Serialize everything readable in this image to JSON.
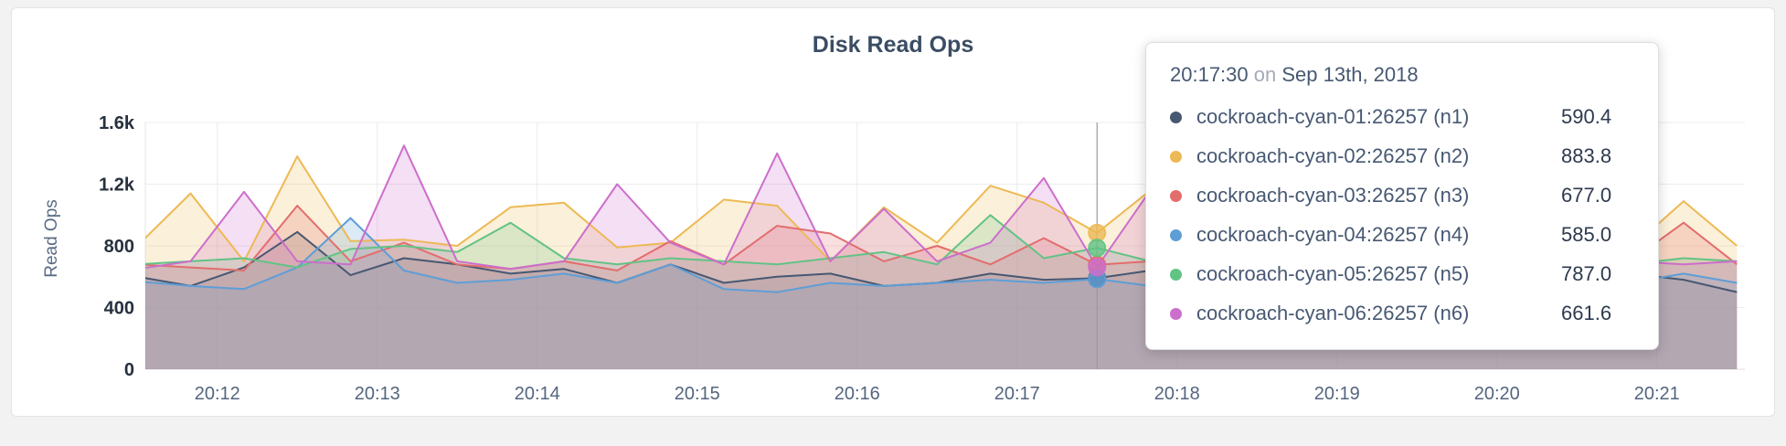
{
  "window": {
    "background": "#f2f2f2",
    "card_background": "#ffffff"
  },
  "chart_data": {
    "type": "area",
    "title": "Disk Read Ops",
    "ylabel": "Read Ops",
    "xlabel": "",
    "grid": true,
    "legend_position": "tooltip",
    "ylim": [
      0,
      1600
    ],
    "xlim": [
      11.55,
      21.55
    ],
    "yticks": [
      {
        "v": 0,
        "label": "0"
      },
      {
        "v": 400,
        "label": "400"
      },
      {
        "v": 800,
        "label": "800"
      },
      {
        "v": 1200,
        "label": "1.2k"
      },
      {
        "v": 1600,
        "label": "1.6k"
      }
    ],
    "xticks": [
      {
        "v": 12,
        "label": "20:12"
      },
      {
        "v": 13,
        "label": "20:13"
      },
      {
        "v": 14,
        "label": "20:14"
      },
      {
        "v": 15,
        "label": "20:15"
      },
      {
        "v": 16,
        "label": "20:16"
      },
      {
        "v": 17,
        "label": "20:17"
      },
      {
        "v": 18,
        "label": "20:18"
      },
      {
        "v": 19,
        "label": "20:19"
      },
      {
        "v": 20,
        "label": "20:20"
      },
      {
        "v": 21,
        "label": "20:21"
      }
    ],
    "x": [
      11.5,
      11.833,
      12.167,
      12.5,
      12.833,
      13.167,
      13.5,
      13.833,
      14.167,
      14.5,
      14.833,
      15.167,
      15.5,
      15.833,
      16.167,
      16.5,
      16.833,
      17.167,
      17.5,
      17.833,
      18.167,
      18.5,
      18.833,
      19.167,
      19.5,
      19.833,
      20.167,
      20.5,
      20.833,
      21.167,
      21.5
    ],
    "crosshair_x": 17.5,
    "series": [
      {
        "id": "n1",
        "name": "cockroach-cyan-01:26257 (n1)",
        "color": "#475872",
        "values": [
          600,
          540,
          660,
          890,
          610,
          720,
          680,
          620,
          650,
          560,
          680,
          560,
          600,
          620,
          540,
          560,
          620,
          580,
          590.4,
          640,
          600,
          560,
          620,
          580,
          600,
          640,
          560,
          600,
          620,
          580,
          500
        ]
      },
      {
        "id": "n2",
        "name": "cockroach-cyan-02:26257 (n2)",
        "color": "#edb954",
        "values": [
          800,
          1140,
          700,
          1380,
          830,
          840,
          800,
          1050,
          1080,
          790,
          820,
          1100,
          1060,
          700,
          1050,
          820,
          1190,
          1080,
          883.8,
          1160,
          1100,
          750,
          900,
          820,
          1000,
          880,
          760,
          980,
          780,
          1090,
          800
        ]
      },
      {
        "id": "n3",
        "name": "cockroach-cyan-03:26257 (n3)",
        "color": "#e36d6d",
        "values": [
          680,
          660,
          640,
          1060,
          700,
          820,
          680,
          650,
          700,
          640,
          830,
          680,
          930,
          880,
          700,
          800,
          680,
          850,
          677,
          700,
          660,
          720,
          680,
          650,
          700,
          680,
          720,
          650,
          700,
          950,
          680
        ]
      },
      {
        "id": "n4",
        "name": "cockroach-cyan-04:26257 (n4)",
        "color": "#5e9ed6",
        "values": [
          570,
          540,
          520,
          660,
          980,
          640,
          560,
          580,
          620,
          560,
          680,
          520,
          500,
          560,
          540,
          560,
          580,
          560,
          585,
          540,
          560,
          580,
          540,
          560,
          520,
          560,
          580,
          540,
          560,
          620,
          560
        ]
      },
      {
        "id": "n5",
        "name": "cockroach-cyan-05:26257 (n5)",
        "color": "#62c385",
        "values": [
          680,
          700,
          720,
          660,
          780,
          800,
          760,
          950,
          720,
          680,
          720,
          700,
          680,
          720,
          760,
          680,
          1000,
          720,
          787,
          700,
          720,
          680,
          700,
          720,
          700,
          680,
          720,
          700,
          680,
          720,
          700
        ]
      },
      {
        "id": "n6",
        "name": "cockroach-cyan-06:26257 (n6)",
        "color": "#cc6ecb",
        "values": [
          650,
          700,
          1150,
          700,
          680,
          1450,
          700,
          650,
          700,
          1200,
          820,
          680,
          1400,
          700,
          1040,
          700,
          820,
          1240,
          661.6,
          1160,
          700,
          680,
          720,
          700,
          680,
          700,
          720,
          680,
          700,
          680,
          700
        ]
      }
    ]
  },
  "tooltip": {
    "time": "20:17:30",
    "on_word": "on",
    "date": "Sep 13th, 2018",
    "rows": [
      {
        "name": "cockroach-cyan-01:26257 (n1)",
        "value": "590.4",
        "color": "#475872"
      },
      {
        "name": "cockroach-cyan-02:26257 (n2)",
        "value": "883.8",
        "color": "#edb954"
      },
      {
        "name": "cockroach-cyan-03:26257 (n3)",
        "value": "677.0",
        "color": "#e36d6d"
      },
      {
        "name": "cockroach-cyan-04:26257 (n4)",
        "value": "585.0",
        "color": "#5e9ed6"
      },
      {
        "name": "cockroach-cyan-05:26257 (n5)",
        "value": "787.0",
        "color": "#62c385"
      },
      {
        "name": "cockroach-cyan-06:26257 (n6)",
        "value": "661.6",
        "color": "#cc6ecb"
      }
    ]
  }
}
